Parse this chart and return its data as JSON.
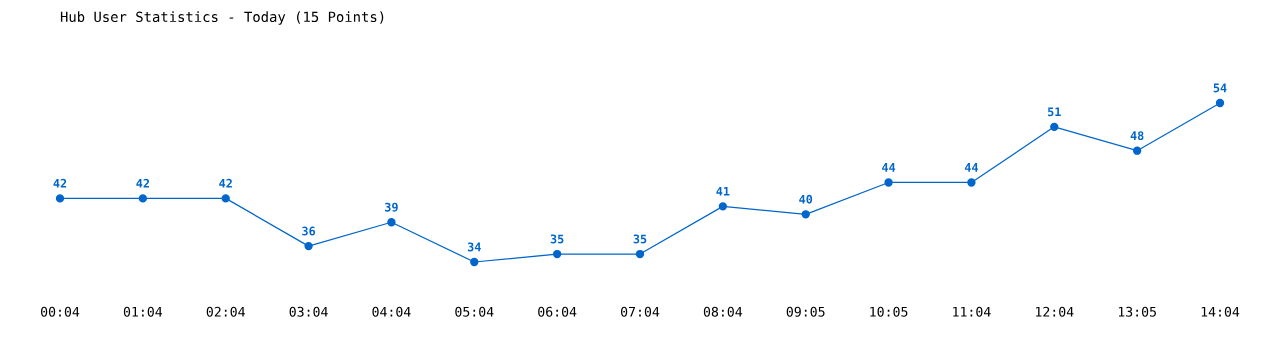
{
  "chart_data": {
    "type": "line",
    "title": "Hub User Statistics - Today (15 Points)",
    "categories": [
      "00:04",
      "01:04",
      "02:04",
      "03:04",
      "04:04",
      "05:04",
      "06:04",
      "07:04",
      "08:04",
      "09:05",
      "10:05",
      "11:04",
      "12:04",
      "13:05",
      "14:04"
    ],
    "series": [
      {
        "color": "#0066cc",
        "values": [
          42,
          42,
          42,
          36,
          39,
          34,
          35,
          35,
          41,
          40,
          44,
          44,
          51,
          48,
          54
        ]
      }
    ],
    "data_labels": true,
    "marker": "circle",
    "line_style": "solid",
    "grid": false,
    "legend": false,
    "tick_labels": "x"
  }
}
